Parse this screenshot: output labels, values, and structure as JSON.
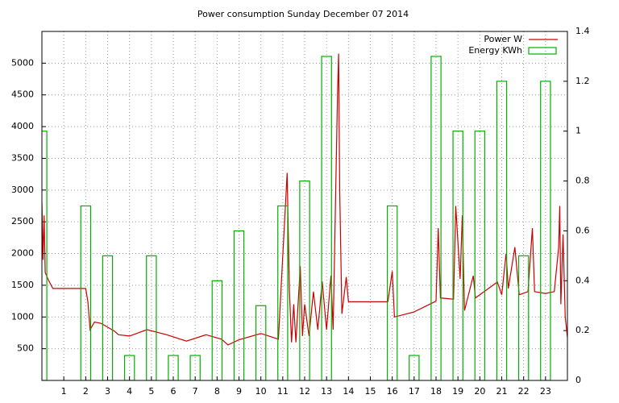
{
  "chart_data": {
    "type": "combo",
    "title": "Power consumption Sunday December 07 2014",
    "xlim": [
      0,
      24
    ],
    "xticks": [
      1,
      2,
      3,
      4,
      5,
      6,
      7,
      8,
      9,
      10,
      11,
      12,
      13,
      14,
      15,
      16,
      17,
      18,
      19,
      20,
      21,
      22,
      23
    ],
    "ylim": [
      0,
      5500
    ],
    "yticks": [
      500,
      1000,
      1500,
      2000,
      2500,
      3000,
      3500,
      4000,
      4500,
      5000
    ],
    "y2lim": [
      0,
      1.4
    ],
    "y2ticks": [
      0,
      0.2,
      0.4,
      0.6,
      0.8,
      1,
      1.2,
      1.4
    ],
    "grid": true,
    "legend": "top-right",
    "series": [
      {
        "name": "Power W",
        "type": "line",
        "color": "#cc0000",
        "x": [
          0,
          0.05,
          0.1,
          0.15,
          0.3,
          0.5,
          2.0,
          2.1,
          2.2,
          2.4,
          2.7,
          3.3,
          3.5,
          4.0,
          4.8,
          5.7,
          6.6,
          7.5,
          8.2,
          8.5,
          9.0,
          10.0,
          10.8,
          11.2,
          11.3,
          11.4,
          11.5,
          11.6,
          11.8,
          11.9,
          12.0,
          12.2,
          12.4,
          12.6,
          12.8,
          13.0,
          13.2,
          13.3,
          13.5,
          13.55,
          13.6,
          13.7,
          13.9,
          14.0,
          15.8,
          16.0,
          16.1,
          17.0,
          18.0,
          18.1,
          18.2,
          18.8,
          18.9,
          19.1,
          19.2,
          19.3,
          19.7,
          19.8,
          20.6,
          20.8,
          21.0,
          21.2,
          21.3,
          21.6,
          21.8,
          22.2,
          22.4,
          22.5,
          23.0,
          23.4,
          23.6,
          23.65,
          23.7,
          23.8,
          23.9,
          24.0
        ],
        "values": [
          2800,
          1900,
          2600,
          1700,
          1580,
          1450,
          1450,
          1240,
          800,
          920,
          900,
          780,
          720,
          700,
          800,
          720,
          620,
          720,
          650,
          560,
          640,
          740,
          650,
          3270,
          1450,
          600,
          1200,
          600,
          1800,
          700,
          1200,
          700,
          1400,
          800,
          1560,
          800,
          1650,
          800,
          4500,
          5150,
          3000,
          1050,
          1630,
          1240,
          1240,
          1720,
          1000,
          1080,
          1250,
          2400,
          1300,
          1280,
          2750,
          1600,
          2600,
          1100,
          1650,
          1300,
          1500,
          1550,
          1350,
          2000,
          1450,
          2100,
          1350,
          1400,
          2400,
          1400,
          1370,
          1400,
          2100,
          2750,
          1200,
          2300,
          1000,
          680
        ]
      },
      {
        "name": "Energy KWh",
        "type": "bar",
        "axis": "y2",
        "color": "#00b000",
        "x": [
          0,
          1,
          2,
          3,
          4,
          5,
          6,
          7,
          8,
          9,
          10,
          11,
          12,
          13,
          14,
          15,
          16,
          17,
          18,
          19,
          20,
          21,
          22,
          23
        ],
        "values": [
          1.0,
          0,
          0.7,
          0.5,
          0.1,
          0.5,
          0.1,
          0.1,
          0.4,
          0.6,
          0.3,
          0.7,
          0.8,
          1.3,
          0,
          0,
          0.7,
          0.1,
          1.3,
          1.0,
          1.0,
          1.2,
          0.5,
          1.2
        ]
      }
    ]
  }
}
